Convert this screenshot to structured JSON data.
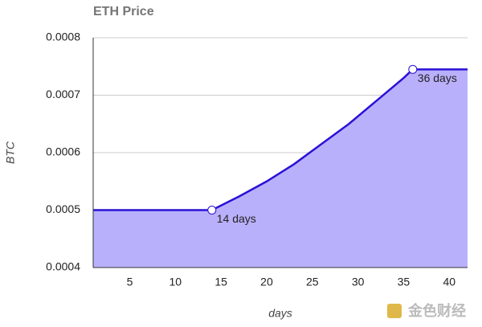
{
  "chart_data": {
    "type": "area",
    "title": "ETH Price",
    "y_label": "BTC",
    "x_label": "days",
    "x": [
      1,
      14,
      17,
      20,
      23,
      26,
      29,
      32,
      35,
      36,
      42
    ],
    "series": [
      {
        "name": "ETH",
        "color": "#2a12d6",
        "fill": "#b9b0fb",
        "values": [
          0.0005,
          0.0005,
          0.000524,
          0.00055,
          0.00058,
          0.000615,
          0.00065,
          0.00069,
          0.00073,
          0.000745,
          0.000745
        ]
      }
    ],
    "xlim": [
      1,
      42
    ],
    "xticks": [
      5,
      10,
      15,
      20,
      25,
      30,
      35,
      40
    ],
    "ylim": [
      0.0004,
      0.0008
    ],
    "yticks": [
      0.0004,
      0.0005,
      0.0006,
      0.0007,
      0.0008
    ],
    "grid": true,
    "annotations": [
      {
        "x": 14,
        "y": 0.0005,
        "label": "14 days"
      },
      {
        "x": 36,
        "y": 0.000745,
        "label": "36 days"
      }
    ]
  },
  "watermark": "金色财经"
}
